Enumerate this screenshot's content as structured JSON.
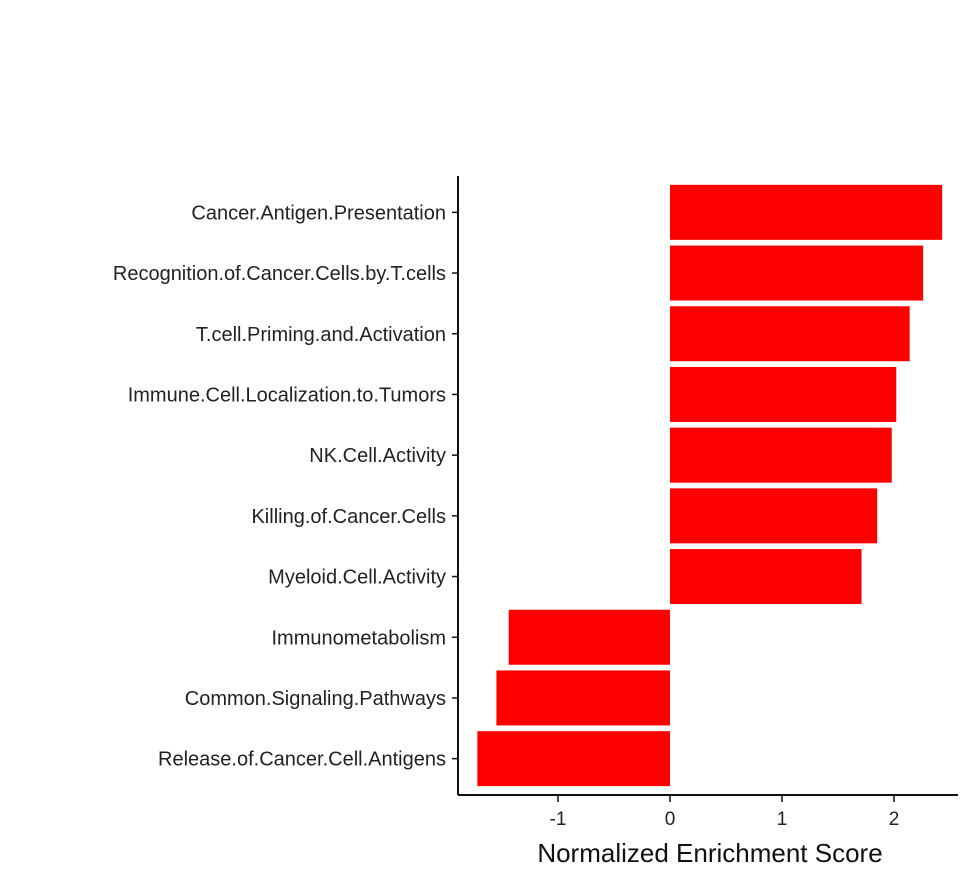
{
  "chart_data": {
    "type": "bar",
    "orientation": "horizontal",
    "categories": [
      "Cancer.Antigen.Presentation",
      "Recognition.of.Cancer.Cells.by.T.cells",
      "T.cell.Priming.and.Activation",
      "Immune.Cell.Localization.to.Tumors",
      "NK.Cell.Activity",
      "Killing.of.Cancer.Cells",
      "Myeloid.Cell.Activity",
      "Immunometabolism",
      "Common.Signaling.Pathways",
      "Release.of.Cancer.Cell.Antigens"
    ],
    "values": [
      2.43,
      2.26,
      2.14,
      2.02,
      1.98,
      1.85,
      1.71,
      -1.44,
      -1.55,
      -1.72
    ],
    "title": "",
    "xlabel": "Normalized Enrichment Score",
    "ylabel": "",
    "xlim": [
      -1.9,
      2.5
    ],
    "xticks": [
      -1,
      0,
      1,
      2
    ],
    "xtick_labels": [
      "-1",
      "0",
      "1",
      "2"
    ],
    "bar_color": "#ff0000",
    "grid": false,
    "legend": "none"
  }
}
